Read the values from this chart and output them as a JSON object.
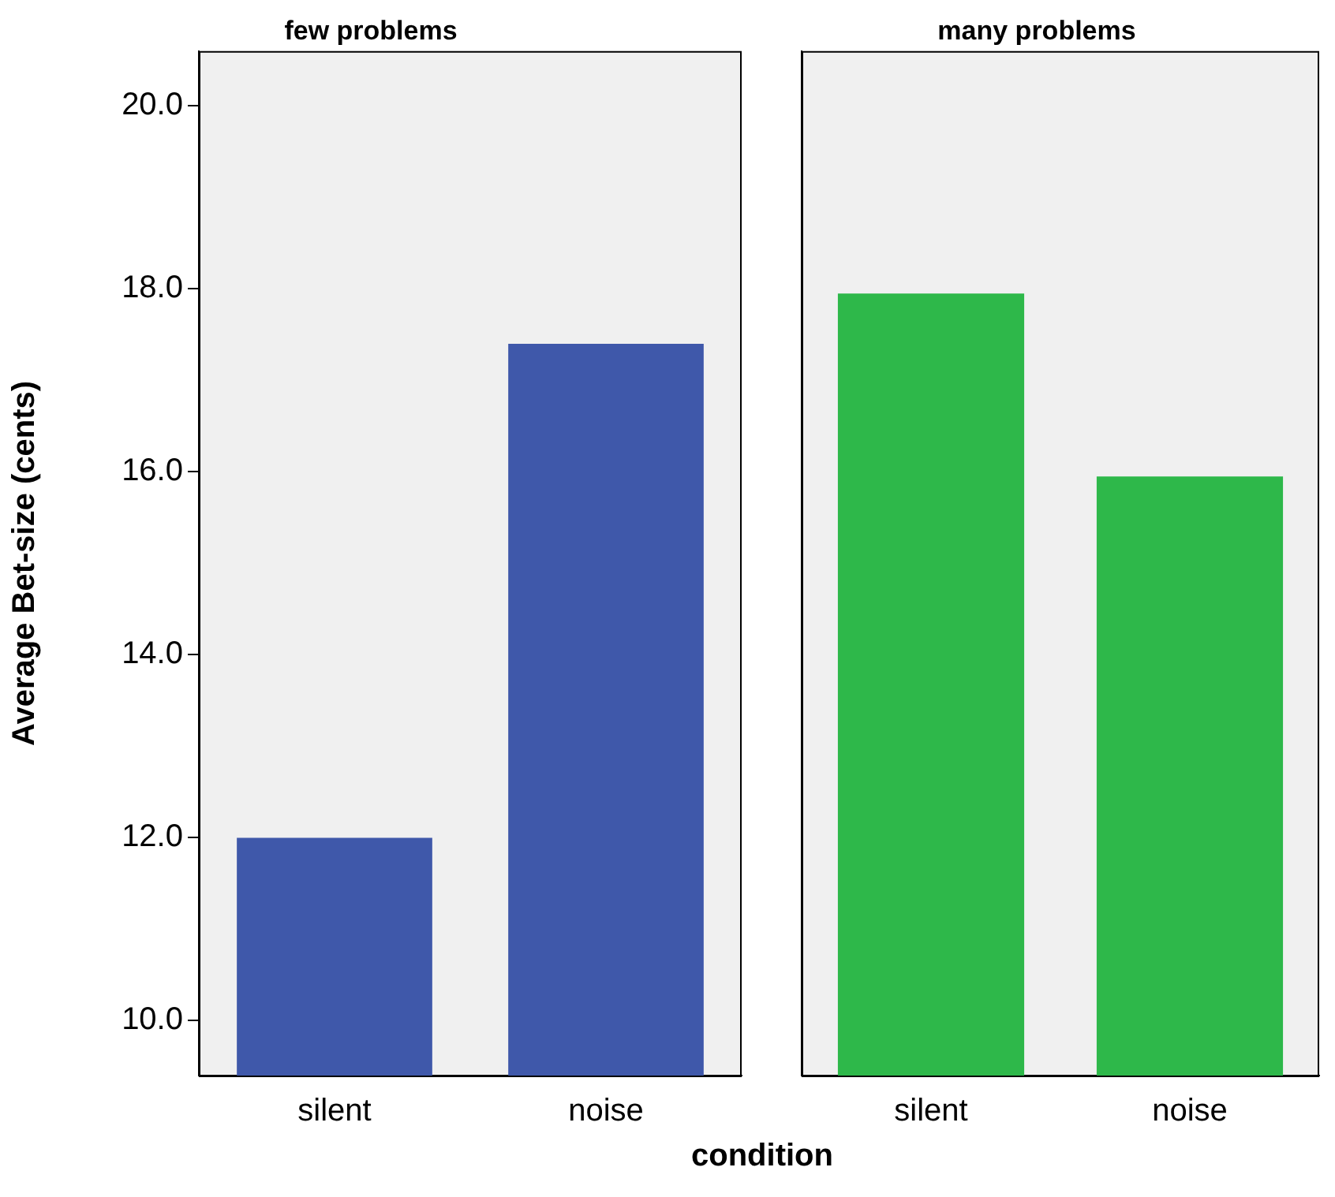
{
  "chart_data": [
    {
      "type": "bar",
      "title": "few problems",
      "xlabel": "condition",
      "ylabel": "Average Bet-size (cents)",
      "categories": [
        "silent",
        "noise"
      ],
      "values": [
        12.0,
        17.4
      ],
      "color": "#3f58aa",
      "ylim": [
        9.4,
        20.6
      ],
      "yticks": [
        {
          "value": 10,
          "label": "10.0"
        },
        {
          "value": 12,
          "label": "12.0"
        },
        {
          "value": 14,
          "label": "14.0"
        },
        {
          "value": 16,
          "label": "16.0"
        },
        {
          "value": 18,
          "label": "18.0"
        },
        {
          "value": 20,
          "label": "20.0"
        }
      ],
      "grid": false
    },
    {
      "type": "bar",
      "title": "many problems",
      "categories": [
        "silent",
        "noise"
      ],
      "values": [
        17.95,
        15.95
      ],
      "color": "#2eb84a",
      "ylim": [
        9.4,
        20.6
      ],
      "tick_labels": "x",
      "grid": false
    }
  ]
}
